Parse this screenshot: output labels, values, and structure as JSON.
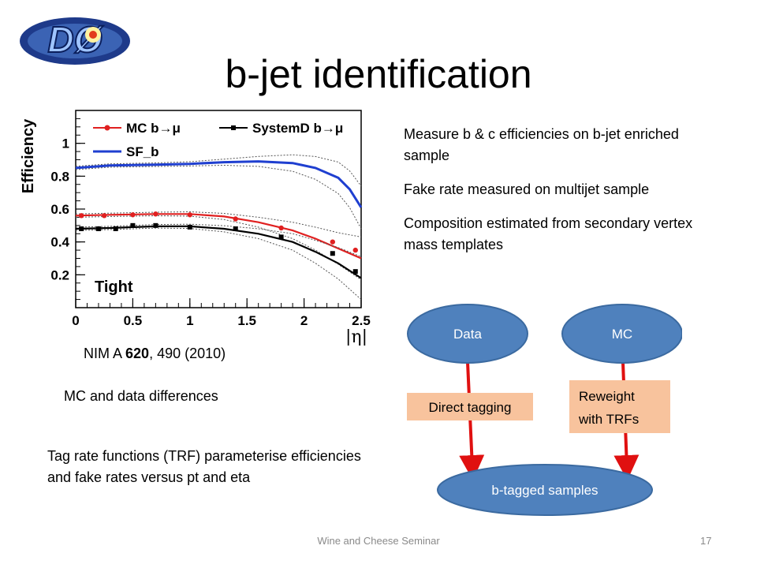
{
  "slide": {
    "title": "b-jet identification",
    "citation": {
      "prefix": "NIM A ",
      "volume": "620",
      "suffix": ", 490 (2010)"
    },
    "mc_diff_note": "MC and data differences",
    "trf_note": "Tag rate functions (TRF) parameterise efficiencies and fake rates versus pt and eta",
    "bullets": [
      "Measure b & c efficiencies on b-jet enriched sample",
      "Fake rate measured on multijet sample",
      "Composition estimated from secondary vertex mass templates"
    ],
    "logo_text": "DØ",
    "footer": {
      "center": "Wine and Cheese Seminar",
      "page": "17"
    },
    "colors": {
      "red": "#e02020",
      "blue": "#1f3fd0",
      "node_blue": "#4f81bd",
      "box_orange": "#f8c39d",
      "arrow_red": "#e01010"
    }
  },
  "flow": {
    "data_label": "Data",
    "mc_label": "MC",
    "direct_label": "Direct tagging",
    "reweight_label": "Reweight with TRFs",
    "reweight_line1": "Reweight",
    "reweight_line2": "with TRFs",
    "btag_label": "b-tagged samples"
  },
  "chart_data": {
    "type": "line",
    "ylabel": "Efficiency",
    "xlabel": "|η|",
    "xlim": [
      0,
      2.5
    ],
    "ylim": [
      0,
      1.2
    ],
    "xticks": [
      "0",
      "0.5",
      "1",
      "1.5",
      "2",
      "2.5"
    ],
    "yticks": [
      "0.2",
      "0.4",
      "0.6",
      "0.8",
      "1"
    ],
    "annotation": "Tight",
    "legend": [
      {
        "label": "MC b→μ",
        "style": "red-circle-line"
      },
      {
        "label": "SystemD b→μ",
        "style": "black-square-line"
      },
      {
        "label": "SF_b",
        "style": "blue-line"
      }
    ],
    "series": [
      {
        "name": "MC b→μ",
        "color": "#e02020",
        "curve": {
          "x": [
            0,
            0.3,
            0.7,
            1.0,
            1.3,
            1.6,
            1.9,
            2.1,
            2.3,
            2.5
          ],
          "y": [
            0.56,
            0.565,
            0.57,
            0.57,
            0.555,
            0.52,
            0.47,
            0.42,
            0.36,
            0.3
          ]
        },
        "points": {
          "x": [
            0.05,
            0.25,
            0.5,
            0.7,
            1.0,
            1.4,
            1.8,
            2.25,
            2.45
          ],
          "y": [
            0.56,
            0.56,
            0.565,
            0.57,
            0.565,
            0.54,
            0.485,
            0.4,
            0.35
          ]
        }
      },
      {
        "name": "SystemD b→μ",
        "color": "#000000",
        "curve": {
          "x": [
            0,
            0.3,
            0.7,
            1.0,
            1.3,
            1.6,
            1.9,
            2.1,
            2.3,
            2.5
          ],
          "y": [
            0.48,
            0.485,
            0.495,
            0.495,
            0.48,
            0.45,
            0.4,
            0.34,
            0.27,
            0.18
          ]
        },
        "points": {
          "x": [
            0.05,
            0.2,
            0.35,
            0.5,
            0.7,
            1.0,
            1.4,
            1.8,
            2.25,
            2.45
          ],
          "y": [
            0.48,
            0.48,
            0.48,
            0.5,
            0.5,
            0.49,
            0.48,
            0.43,
            0.33,
            0.22
          ]
        }
      },
      {
        "name": "SF_b",
        "color": "#1f3fd0",
        "curve": {
          "x": [
            0,
            0.3,
            0.7,
            1.0,
            1.3,
            1.6,
            1.9,
            2.1,
            2.3,
            2.4,
            2.5
          ],
          "y": [
            0.85,
            0.865,
            0.87,
            0.875,
            0.885,
            0.89,
            0.88,
            0.85,
            0.79,
            0.72,
            0.61
          ]
        }
      }
    ]
  }
}
